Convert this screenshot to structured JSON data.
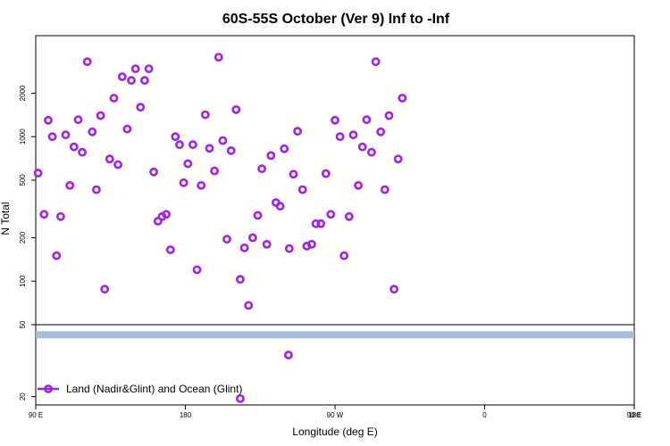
{
  "chart_data": {
    "type": "scatter",
    "title": "60S-55S October (Ver 9)   Inf to -Inf",
    "xlabel": "Longitude (deg E)",
    "ylabel": "N Total",
    "x_tick_labels": [
      "90 E",
      "180",
      "90 W",
      "0",
      "90 E",
      "180"
    ],
    "y_upper_tick_labels": [
      "50",
      "100",
      "200",
      "500",
      "1000",
      "2000"
    ],
    "y_lower_tick_labels": [
      "20"
    ],
    "y_scale": "log",
    "grid": false,
    "legend_position": "bottom-left",
    "colors": {
      "points": "#a020f0",
      "band": "#a6bddb"
    },
    "upper_panel": {
      "ylim": [
        50,
        5000
      ],
      "series": [
        {
          "name": "Land (Nadir&Glint) and Ocean (Glint)",
          "points": [
            [
              91.4,
              560
            ],
            [
              95.0,
              290
            ],
            [
              97.5,
              1300
            ],
            [
              100.0,
              1000
            ],
            [
              102.5,
              150
            ],
            [
              105.0,
              280
            ],
            [
              108.0,
              1030
            ],
            [
              110.5,
              460
            ],
            [
              113.0,
              850
            ],
            [
              115.5,
              1310
            ],
            [
              118.0,
              780
            ],
            [
              121.0,
              3300
            ],
            [
              124.0,
              1080
            ],
            [
              126.5,
              430
            ],
            [
              129.0,
              1400
            ],
            [
              131.5,
              88
            ],
            [
              134.5,
              700
            ],
            [
              137.0,
              1850
            ],
            [
              139.5,
              640
            ],
            [
              142.0,
              2600
            ],
            [
              145.0,
              1130
            ],
            [
              147.5,
              2450
            ],
            [
              150.0,
              2950
            ],
            [
              153.0,
              1600
            ],
            [
              155.5,
              2450
            ],
            [
              158.0,
              2950
            ],
            [
              161.0,
              570
            ],
            [
              163.5,
              260
            ],
            [
              166.0,
              280
            ],
            [
              168.5,
              290
            ],
            [
              171.0,
              165
            ],
            [
              174.0,
              1000
            ],
            [
              176.5,
              880
            ],
            [
              179.0,
              480
            ],
            [
              181.5,
              650
            ],
            [
              184.5,
              880
            ],
            [
              187.0,
              120
            ],
            [
              189.5,
              460
            ],
            [
              192.0,
              1420
            ],
            [
              194.5,
              830
            ],
            [
              197.5,
              580
            ],
            [
              200.0,
              3550
            ],
            [
              202.5,
              940
            ],
            [
              205.0,
              195
            ],
            [
              207.5,
              800
            ],
            [
              210.5,
              1540
            ],
            [
              213.0,
              103
            ],
            [
              215.5,
              170
            ],
            [
              218.0,
              68
            ],
            [
              220.5,
              200
            ],
            [
              223.5,
              285
            ],
            [
              226.0,
              600
            ],
            [
              229.0,
              180
            ],
            [
              231.5,
              740
            ],
            [
              234.5,
              350
            ],
            [
              237.0,
              330
            ],
            [
              239.5,
              825
            ],
            [
              242.5,
              168
            ],
            [
              245.0,
              550
            ],
            [
              247.5,
              1090
            ],
            [
              250.5,
              430
            ],
            [
              253.0,
              175
            ],
            [
              256.0,
              180
            ],
            [
              258.5,
              250
            ],
            [
              261.5,
              250
            ],
            [
              264.5,
              555
            ],
            [
              267.5,
              290
            ],
            [
              270.0,
              1300
            ],
            [
              273.0,
              1000
            ],
            [
              275.5,
              150
            ],
            [
              278.5,
              280
            ],
            [
              281.0,
              1030
            ],
            [
              284.0,
              460
            ],
            [
              286.5,
              850
            ],
            [
              289.0,
              1310
            ],
            [
              292.0,
              780
            ],
            [
              294.5,
              3300
            ],
            [
              297.5,
              1080
            ],
            [
              300.0,
              430
            ],
            [
              302.5,
              1400
            ],
            [
              305.5,
              88
            ],
            [
              308.0,
              700
            ],
            [
              310.5,
              1850
            ]
          ]
        }
      ]
    },
    "lower_panel": {
      "ylim": [
        18,
        50
      ],
      "band": {
        "from": 42,
        "to": 46
      },
      "points": [
        [
          242.0,
          34
        ],
        [
          213.0,
          19.5
        ]
      ]
    },
    "legend": [
      {
        "label": "Land (Nadir&Glint) and Ocean (Glint)"
      }
    ]
  }
}
